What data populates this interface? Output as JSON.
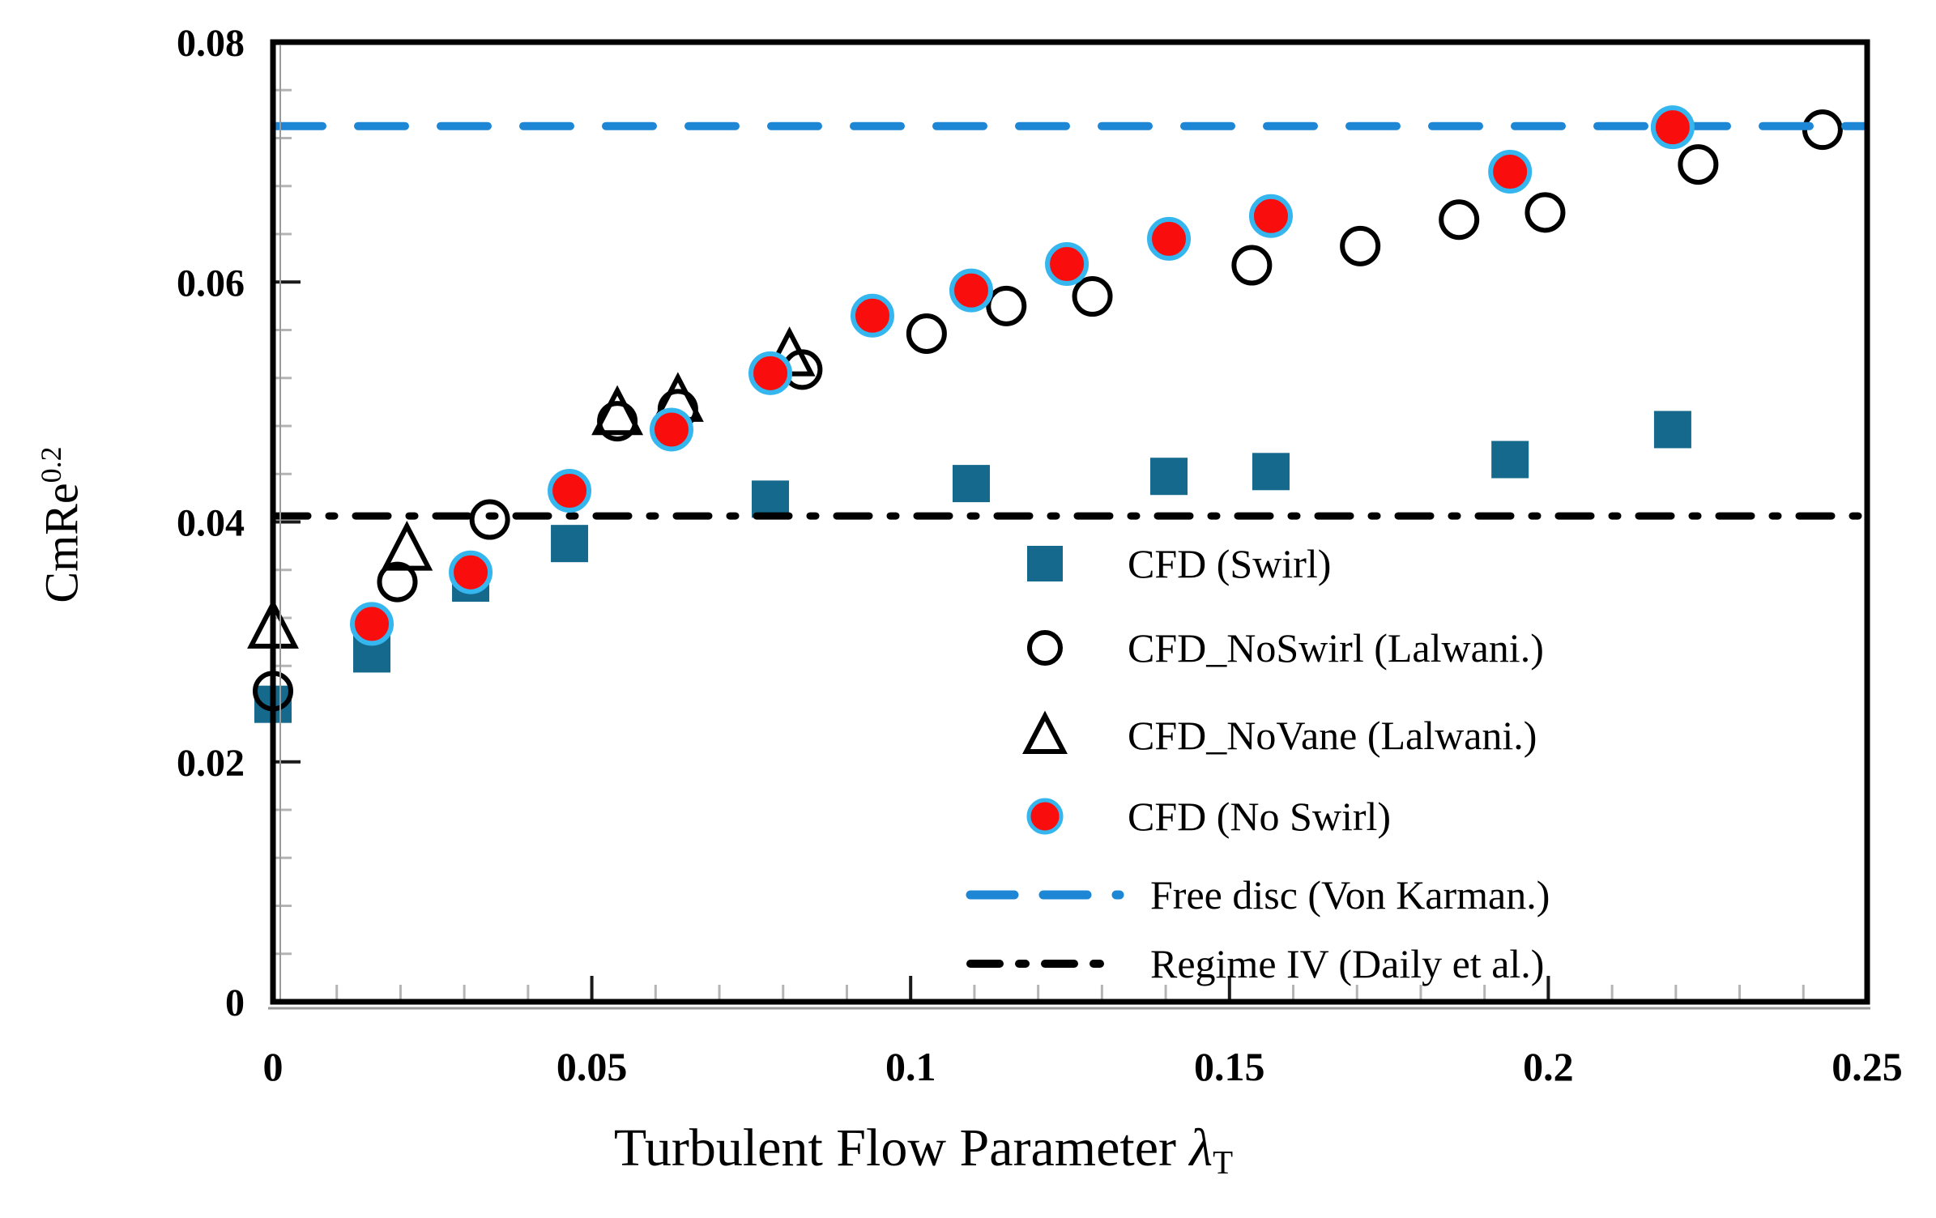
{
  "chart_data": {
    "type": "scatter",
    "title": "",
    "xlabel": {
      "main": "Turbulent Flow Parameter ",
      "symbol": "λ",
      "subscript": "T"
    },
    "ylabel": {
      "main": "CmRe",
      "superscript": "0.2"
    },
    "xlim": [
      0,
      0.25
    ],
    "ylim": [
      0,
      0.08
    ],
    "grid": false,
    "legend_position": "inside-lower-right",
    "x_ticks": {
      "values": [
        0,
        0.05,
        0.1,
        0.15,
        0.2,
        0.25
      ],
      "labels": [
        "0",
        "0.05",
        "0.1",
        "0.15",
        "0.2",
        "0.25"
      ],
      "minor_step": 0.01
    },
    "y_ticks": {
      "values": [
        0,
        0.02,
        0.04,
        0.06,
        0.08
      ],
      "labels": [
        "0",
        "0.02",
        "0.04",
        "0.06",
        "0.08"
      ],
      "minor_step": 0.004
    },
    "series": [
      {
        "name": "CFD (Swirl)",
        "marker": "filled-square",
        "color": "#15698C",
        "points": [
          [
            0,
            0.0248
          ],
          [
            0.0155,
            0.029
          ],
          [
            0.031,
            0.0349
          ],
          [
            0.0465,
            0.0382
          ],
          [
            0.078,
            0.0419
          ],
          [
            0.1095,
            0.0432
          ],
          [
            0.1405,
            0.0438
          ],
          [
            0.1565,
            0.0442
          ],
          [
            0.194,
            0.0452
          ],
          [
            0.2195,
            0.0477
          ]
        ]
      },
      {
        "name": "CFD_NoSwirl (Lalwani.)",
        "marker": "open-circle",
        "color": "#000000",
        "points": [
          [
            0,
            0.0259
          ],
          [
            0.0195,
            0.035
          ],
          [
            0.034,
            0.0402
          ],
          [
            0.054,
            0.0484
          ],
          [
            0.0635,
            0.0494
          ],
          [
            0.083,
            0.0527
          ],
          [
            0.1025,
            0.0557
          ],
          [
            0.115,
            0.058
          ],
          [
            0.1285,
            0.0588
          ],
          [
            0.1535,
            0.0614
          ],
          [
            0.1705,
            0.063
          ],
          [
            0.186,
            0.0652
          ],
          [
            0.1995,
            0.0658
          ],
          [
            0.2235,
            0.0698
          ],
          [
            0.243,
            0.0727
          ]
        ]
      },
      {
        "name": "CFD_NoVane (Lalwani.)",
        "marker": "open-triangle",
        "color": "#000000",
        "points": [
          [
            0,
            0.0312
          ],
          [
            0.021,
            0.0377
          ],
          [
            0.054,
            0.049
          ],
          [
            0.0635,
            0.0501
          ],
          [
            0.081,
            0.0539
          ]
        ]
      },
      {
        "name": "CFD (No Swirl)",
        "marker": "filled-circle",
        "color": "#F90D0D",
        "edge_color": "#35B6EE",
        "points": [
          [
            0.0155,
            0.0315
          ],
          [
            0.031,
            0.0358
          ],
          [
            0.0465,
            0.0426
          ],
          [
            0.0625,
            0.0477
          ],
          [
            0.078,
            0.0524
          ],
          [
            0.094,
            0.0572
          ],
          [
            0.1095,
            0.0593
          ],
          [
            0.1245,
            0.0615
          ],
          [
            0.1405,
            0.0636
          ],
          [
            0.1565,
            0.0655
          ],
          [
            0.194,
            0.0692
          ],
          [
            0.2195,
            0.0729
          ]
        ]
      }
    ],
    "ref_lines": [
      {
        "name": "Free disc (Von Karman.)",
        "value": 0.073,
        "style": "dashed",
        "color": "#1E87D5"
      },
      {
        "name": "Regime IV (Daily et al.)",
        "value": 0.0405,
        "style": "dash-dot",
        "color": "#000000"
      }
    ]
  }
}
